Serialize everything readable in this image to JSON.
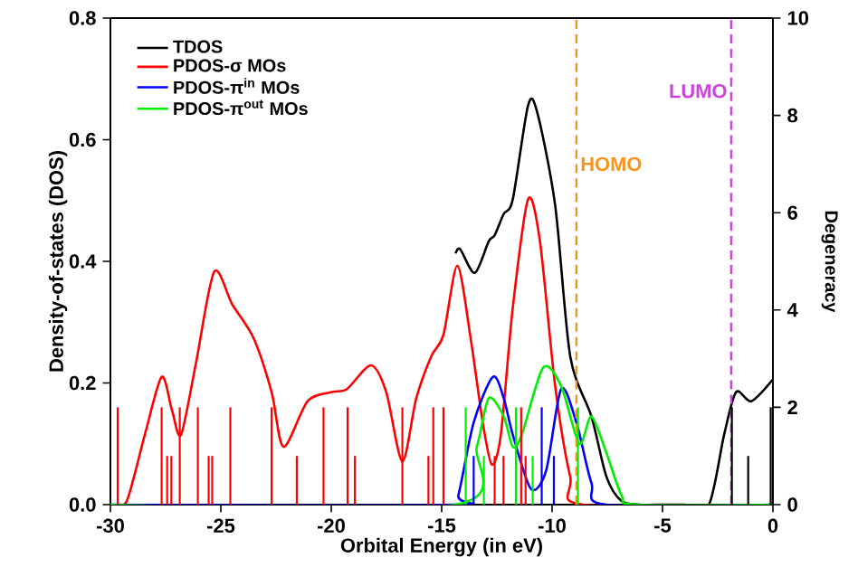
{
  "chart_data": {
    "type": "line",
    "xlabel": "Orbital Energy (in eV)",
    "ylabel": "Density-of-states (DOS)",
    "y2label": "Degeneracy",
    "xlim": [
      -30,
      0
    ],
    "xticks": [
      -30,
      -25,
      -20,
      -15,
      -10,
      -5,
      0
    ],
    "ylim": [
      0,
      0.8
    ],
    "yticks": [
      {
        "value": 0,
        "label": "0.0"
      },
      0.2,
      0.4,
      0.6,
      0.8
    ],
    "y2lim": [
      0,
      10
    ],
    "y2ticks": [
      0,
      2,
      4,
      6,
      8,
      10
    ],
    "legend": "top left",
    "line_style": "solid",
    "series": [
      {
        "name": "TDOS",
        "color": "#000000",
        "x": [
          -14.37,
          -14.16,
          -13.5,
          -12.87,
          -12.6,
          -12.19,
          -11.78,
          -11.09,
          -10.68,
          -9.86,
          -9.18,
          -8.22,
          -7.54,
          -6.86,
          -6.0,
          -5.0,
          -4.0,
          -2.9,
          -2.21,
          -1.67,
          -0.98,
          -0.02
        ],
        "values": [
          0.413,
          0.42,
          0.381,
          0.433,
          0.443,
          0.478,
          0.502,
          0.656,
          0.646,
          0.492,
          0.244,
          0.145,
          0.046,
          0.006,
          0,
          0,
          0,
          0,
          0.115,
          0.185,
          0.17,
          0.205
        ]
      },
      {
        "name": "PDOS-σ MOs",
        "color": "#ff0000",
        "x": [
          -29.9,
          -29.26,
          -28.44,
          -27.68,
          -27.21,
          -26.8,
          -26.12,
          -25.3,
          -24.48,
          -23.52,
          -22.7,
          -22.16,
          -21.07,
          -19.97,
          -19.29,
          -18.2,
          -17.51,
          -16.78,
          -16.15,
          -15.47,
          -14.92,
          -14.29,
          -13.69,
          -13.14,
          -12.73,
          -12.32,
          -11.78,
          -11.09,
          -10.55,
          -9.86,
          -9.18,
          -8.6,
          0
        ],
        "values": [
          0,
          0.006,
          0.115,
          0.21,
          0.155,
          0.115,
          0.234,
          0.383,
          0.329,
          0.274,
          0.185,
          0.095,
          0.17,
          0.185,
          0.19,
          0.229,
          0.185,
          0.071,
          0.175,
          0.244,
          0.279,
          0.393,
          0.274,
          0.135,
          0.066,
          0.115,
          0.324,
          0.502,
          0.433,
          0.195,
          0.046,
          0,
          0
        ]
      },
      {
        "name": "PDOS-π$^{in}$ MOs",
        "color": "#0000ff",
        "x": [
          -30,
          -14.6,
          -14.24,
          -13.55,
          -12.68,
          -12.19,
          -11.78,
          -10.96,
          -10.27,
          -9.59,
          -8.9,
          -8.22,
          -7.54,
          0
        ],
        "values": [
          0,
          0,
          0.016,
          0.135,
          0.21,
          0.175,
          0.115,
          0.026,
          0.056,
          0.19,
          0.135,
          0.036,
          0,
          0
        ]
      },
      {
        "name": "PDOS-π$^{out}$ MOs",
        "color": "#00ee00",
        "x": [
          -30,
          -14.4,
          -13.41,
          -12.87,
          -12.19,
          -11.78,
          -11.37,
          -10.41,
          -9.59,
          -8.77,
          -8.22,
          -7.54,
          -6.86,
          -6.2,
          0
        ],
        "values": [
          0,
          0,
          0.095,
          0.175,
          0.145,
          0.095,
          0.115,
          0.225,
          0.195,
          0.1,
          0.145,
          0.085,
          0.016,
          0,
          0
        ]
      },
      {
        "type": "bar",
        "axis": "y2",
        "color": "#ff0000",
        "x": [
          -29.67,
          -27.68,
          -27.43,
          -27.24,
          -26.86,
          -26.04,
          -25.55,
          -25.39,
          -24.57,
          -22.7,
          -21.56,
          -20.35,
          -19.26,
          -18.93,
          -16.78,
          -15.6,
          -15.38,
          -14.92,
          -12.6,
          -12.2,
          -11.4,
          -11.2
        ],
        "values": [
          2,
          2,
          1,
          1,
          2,
          2,
          1,
          1,
          2,
          2,
          1,
          2,
          2,
          1,
          2,
          1,
          2,
          2,
          1,
          1,
          2,
          1
        ]
      },
      {
        "type": "bar",
        "axis": "y2",
        "color": "#00ee00",
        "x": [
          -13.91,
          -13.09,
          -11.64,
          -10.88,
          -8.83
        ],
        "values": [
          2,
          1,
          2,
          1,
          2
        ]
      },
      {
        "type": "bar",
        "axis": "y2",
        "color": "#0000ff",
        "x": [
          -13.55,
          -10.47,
          -9.92
        ],
        "values": [
          1,
          2,
          1
        ]
      },
      {
        "type": "bar",
        "axis": "y2",
        "color": "#000000",
        "x": [
          -1.86,
          -1.12,
          -0.1
        ],
        "values": [
          2,
          1,
          2
        ]
      }
    ],
    "ref_lines": [
      {
        "axis": "x",
        "value": -8.9,
        "label": "HOMO",
        "color": "#f7941d",
        "line_style": "dashed"
      },
      {
        "axis": "x",
        "value": -1.89,
        "label": "LUMO",
        "color": "#cc44dd",
        "line_style": "dashed"
      }
    ]
  }
}
